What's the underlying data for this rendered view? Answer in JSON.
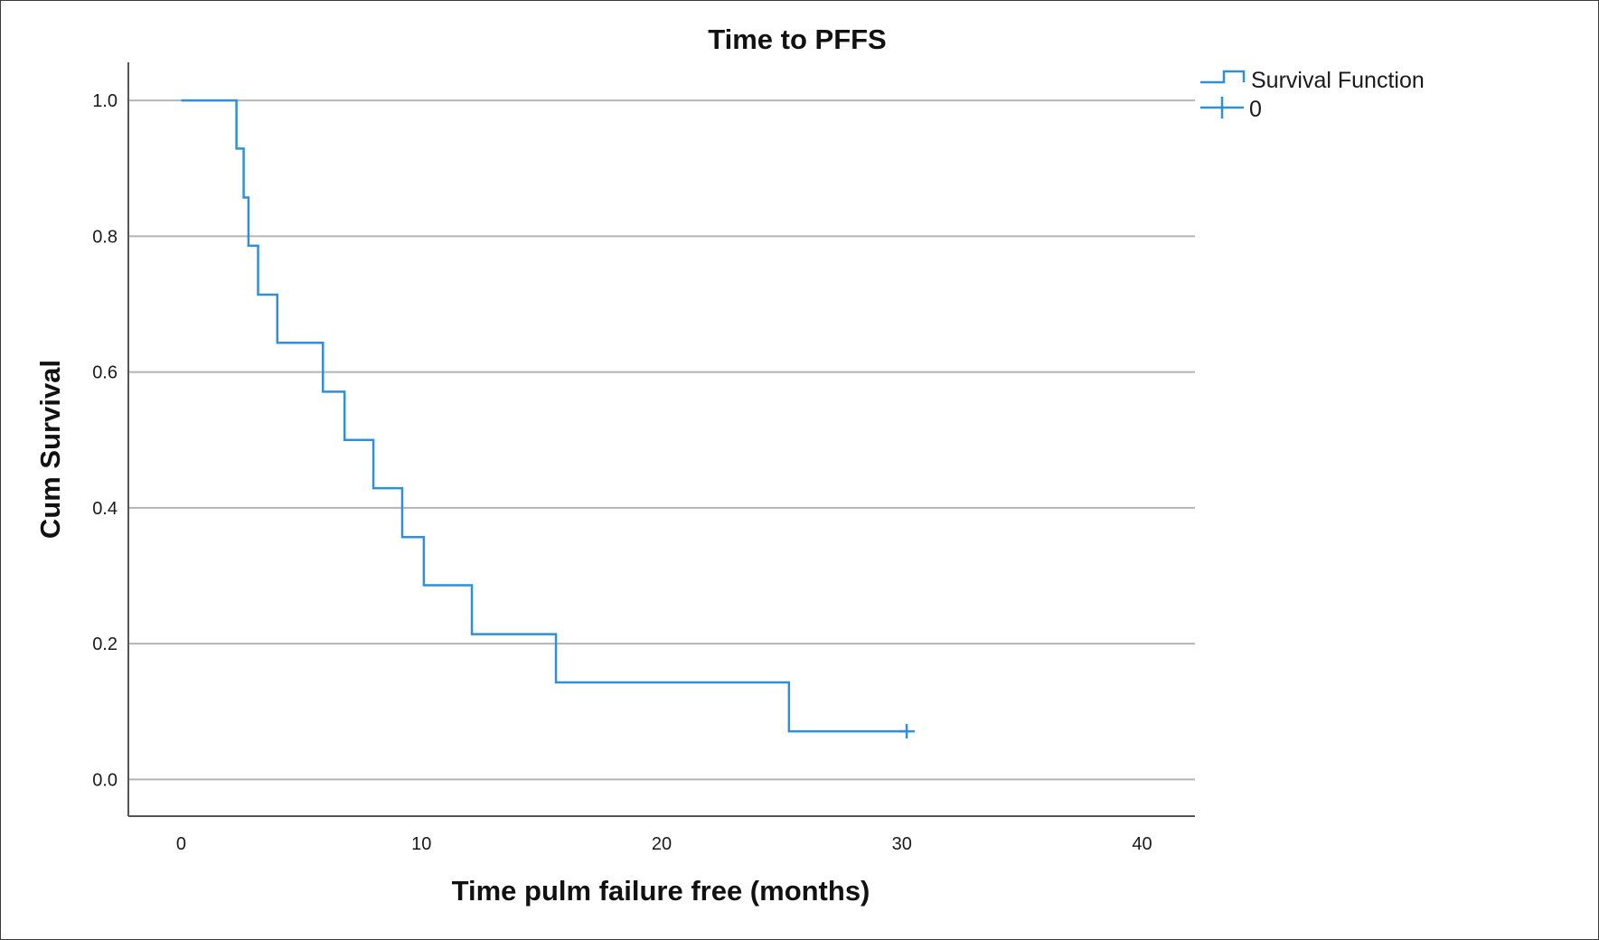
{
  "chart_data": {
    "type": "line",
    "title": "Time to PFFS",
    "xlabel": "Time pulm failure free (months)",
    "ylabel": "Cum Survival",
    "xlim": [
      -2.2,
      42.2
    ],
    "ylim": [
      -0.054,
      1.056
    ],
    "x_ticks": [
      "0",
      "10",
      "20",
      "30",
      "40"
    ],
    "y_ticks": [
      "0.0",
      "0.2",
      "0.4",
      "0.6",
      "0.8",
      "1.0"
    ],
    "grid": "horizontal",
    "legend_position": "top-right",
    "series": [
      {
        "name": "Survival Function",
        "color": "#2f8fd8",
        "style": "step",
        "x": [
          0,
          2.3,
          2.6,
          2.8,
          3.2,
          4.0,
          5.9,
          6.8,
          8.0,
          9.2,
          10.1,
          12.1,
          15.6,
          25.3,
          30.2
        ],
        "y": [
          1.0,
          0.929,
          0.857,
          0.786,
          0.714,
          0.643,
          0.571,
          0.5,
          0.429,
          0.357,
          0.286,
          0.214,
          0.143,
          0.071,
          0.071
        ]
      },
      {
        "name": "0",
        "color": "#2f8fd8",
        "style": "censored",
        "x": [
          30.2
        ],
        "y": [
          0.071
        ]
      }
    ]
  }
}
